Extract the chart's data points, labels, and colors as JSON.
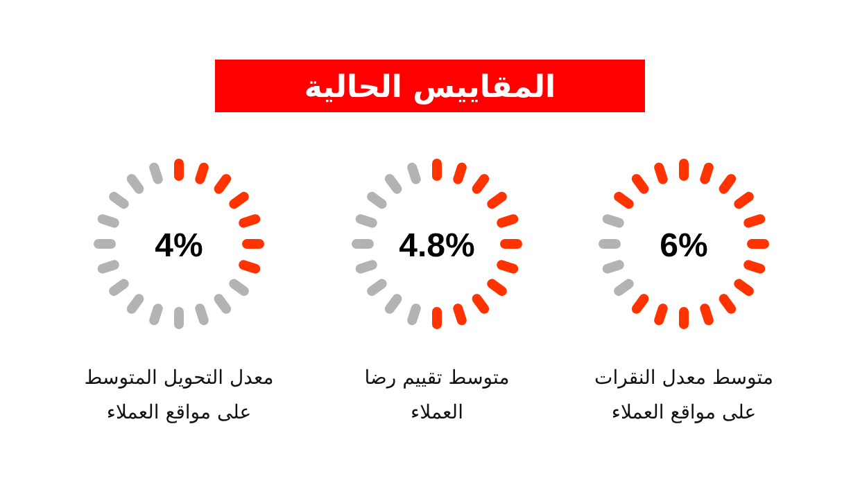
{
  "chart_data": {
    "type": "other",
    "title": "المقاييس الحالية",
    "categories": [
      "معدل التحويل المتوسط\nعلى مواقع العملاء",
      "متوسط تقييم رضا\nالعملاء",
      "متوسط معدل النقرات\nعلى مواقع العملاء"
    ],
    "values": [
      4,
      4.8,
      6
    ],
    "value_labels": [
      "4%",
      "4.8%",
      "6%"
    ],
    "colors": [
      [
        "#ff3300",
        "#ff3300",
        "#ff3300",
        "#ff3300",
        "#ff3300",
        "#ff3300",
        "#ff3300",
        "#b3b3b3",
        "#b3b3b3",
        "#b3b3b3",
        "#b3b3b3",
        "#b3b3b3",
        "#b3b3b3",
        "#b3b3b3",
        "#b3b3b3",
        "#b3b3b3",
        "#b3b3b3",
        "#b3b3b3",
        "#b3b3b3",
        "#b3b3b3"
      ],
      [
        "#ff3300",
        "#ff3300",
        "#ff3300",
        "#ff3300",
        "#ff3300",
        "#ff3300",
        "#ff3300",
        "#ff3300",
        "#ff3300",
        "#ff3300",
        "#ff3300",
        "#b3b3b3",
        "#b3b3b3",
        "#b3b3b3",
        "#b3b3b3",
        "#b3b3b3",
        "#b3b3b3",
        "#b3b3b3",
        "#b3b3b3",
        "#b3b3b3"
      ],
      [
        "#ff3300",
        "#ff3300",
        "#ff3300",
        "#ff3300",
        "#ff3300",
        "#ff3300",
        "#ff3300",
        "#ff3300",
        "#ff3300",
        "#ff3300",
        "#ff3300",
        "#ff3300",
        "#ff3300",
        "#b3b3b3",
        "#b3b3b3",
        "#b3b3b3",
        "#b3b3b3",
        "#ff3300",
        "#ff3300",
        "#ff3300"
      ]
    ]
  }
}
